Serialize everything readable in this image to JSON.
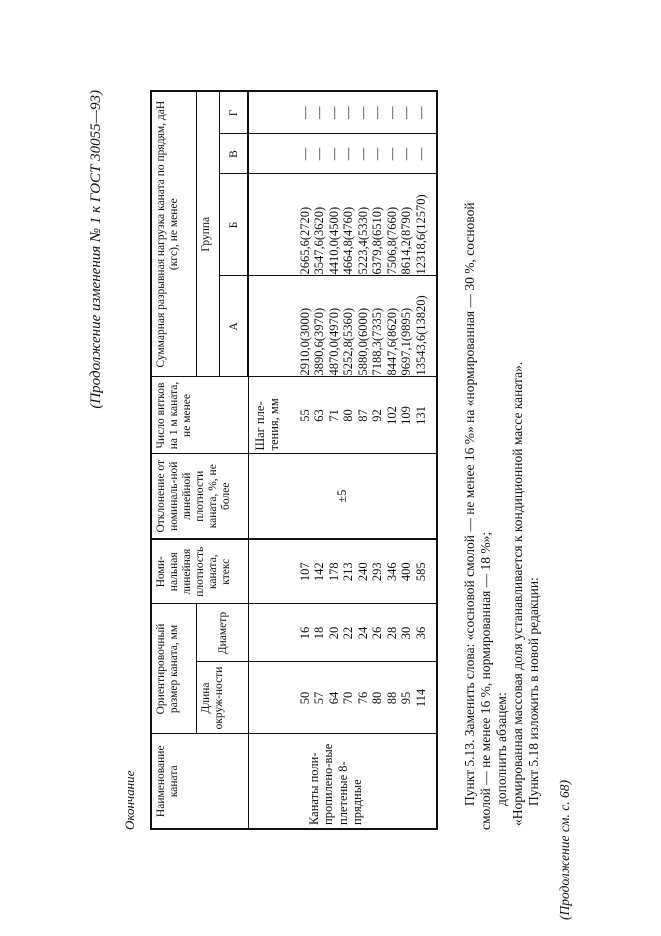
{
  "header": "(Продолжение изменения № 1 к ГОСТ 30055—93)",
  "subtitle": "Окончание",
  "table": {
    "col_name": "Наименование каната",
    "col_size": "Ориентировочный размер каната, мм",
    "col_length": "Длина окруж-ности",
    "col_diameter": "Диаметр",
    "col_density": "Номи-нальная линейная плотность каната, ктекс",
    "col_deviation": "Отклонение от номиналь-ной линейной плотности каната, %, не более",
    "col_turns": "Число витков на 1 м каната, не менее",
    "col_load": "Суммарная разрывная нагрузка каната по прядям, даН (кгс), не менее",
    "col_group": "Группа",
    "groups": [
      "А",
      "Б",
      "В",
      "Г"
    ],
    "pitch_label": "Шаг пле-тения, мм",
    "rope_name": "Канаты поли-пропилено-вые плетеные 8-прядные",
    "deviation": "±5",
    "rows": [
      {
        "length": "50",
        "diameter": "16",
        "density": "107",
        "turns": "55",
        "a": "2910,0(3000)",
        "b": "2665,6(2720)",
        "v": "—",
        "g": "—"
      },
      {
        "length": "57",
        "diameter": "18",
        "density": "142",
        "turns": "63",
        "a": "3890,6(3970)",
        "b": "3547,6(3620)",
        "v": "—",
        "g": "—"
      },
      {
        "length": "64",
        "diameter": "20",
        "density": "178",
        "turns": "71",
        "a": "4870,0(4970)",
        "b": "4410,0(4500)",
        "v": "—",
        "g": "—"
      },
      {
        "length": "70",
        "diameter": "22",
        "density": "213",
        "turns": "80",
        "a": "5252,8(5360)",
        "b": "4664,8(4760)",
        "v": "—",
        "g": "—"
      },
      {
        "length": "76",
        "diameter": "24",
        "density": "240",
        "turns": "87",
        "a": "5880,0(6000)",
        "b": "5223,4(5330)",
        "v": "—",
        "g": "—"
      },
      {
        "length": "80",
        "diameter": "26",
        "density": "293",
        "turns": "92",
        "a": "7188,3(7335)",
        "b": "6379,8(6510)",
        "v": "—",
        "g": "—"
      },
      {
        "length": "88",
        "diameter": "28",
        "density": "346",
        "turns": "102",
        "a": "8447,6(8620)",
        "b": "7506,8(7660)",
        "v": "—",
        "g": "—"
      },
      {
        "length": "95",
        "diameter": "30",
        "density": "400",
        "turns": "109",
        "a": "9697,1(9895)",
        "b": "8614,2(8790)",
        "v": "—",
        "g": "—"
      },
      {
        "length": "114",
        "diameter": "36",
        "density": "585",
        "turns": "131",
        "a": "13543,6(13820)",
        "b": "12318,6(12570)",
        "v": "—",
        "g": "—"
      }
    ]
  },
  "paragraphs": [
    "Пункт 5.13. Заменить слова: «сосновой смолой — не менее 16 %» на «нормированная — 30 %, сосновой",
    "смолой — не менее 16 %, нормированная — 18 %»;",
    "дополнить абзацем:",
    "«Нормированная массовая доля устанавливается к кондиционной массе каната».",
    "Пункт 5.18 изложить в новой редакции:"
  ],
  "footer": "(Продолжение см. с. 68)"
}
